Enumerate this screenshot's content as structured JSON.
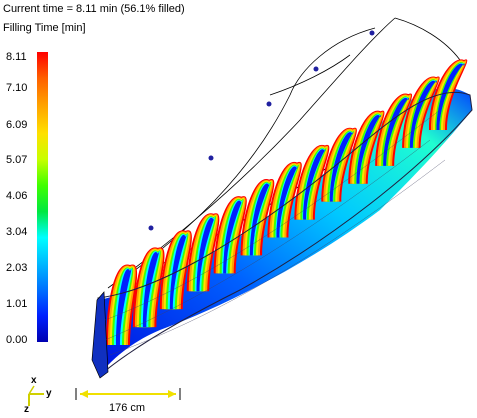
{
  "header": {
    "status_text": "Current time = 8.11 min (56.1% filled)",
    "result_name": "Filling Time [min]"
  },
  "legend": {
    "ticks": [
      "8.11",
      "7.10",
      "6.09",
      "5.07",
      "4.06",
      "3.04",
      "2.03",
      "1.01",
      "0.00"
    ],
    "colors": [
      "#ff0000",
      "#ffa000",
      "#ffe000",
      "#40ff00",
      "#00ffff",
      "#00b8ff",
      "#0020ff",
      "#0000b0"
    ]
  },
  "scale": {
    "label": "176 cm",
    "color": "#f0e000"
  },
  "axes": {
    "x": "x",
    "y": "y",
    "z": "z"
  }
}
